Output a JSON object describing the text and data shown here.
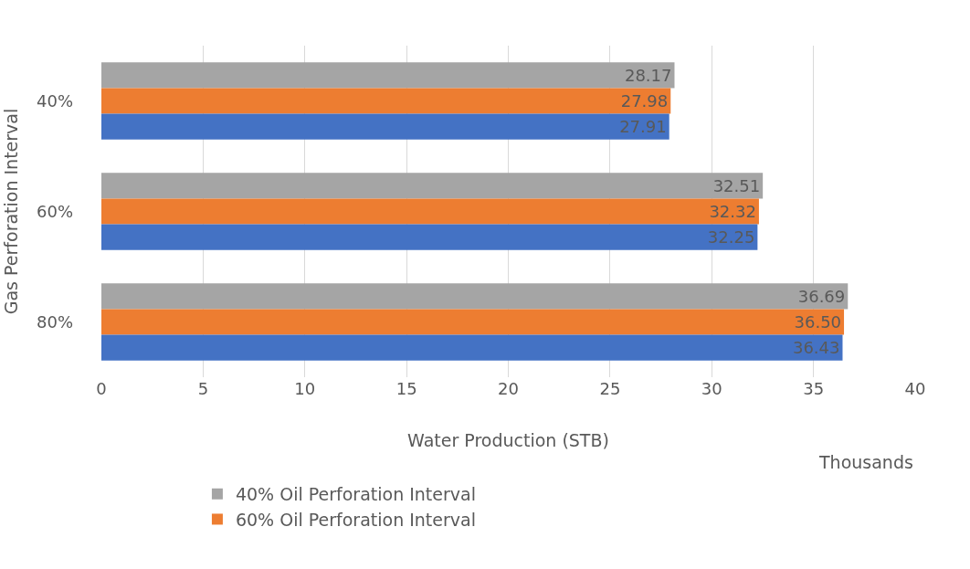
{
  "chart_data": {
    "type": "bar",
    "orientation": "horizontal",
    "ylabel": "Gas Perforation Interval",
    "xlabel": "Water Production (STB)",
    "annotations": [
      "Thousands"
    ],
    "categories": [
      "40%",
      "60%",
      "80%"
    ],
    "series": [
      {
        "name": "40% Oil Perforation Interval",
        "color": "#a5a5a5",
        "values": [
          28.17,
          32.51,
          36.69
        ],
        "value_labels": [
          "28.17",
          "32.51",
          "36.69"
        ]
      },
      {
        "name": "60% Oil Perforation Interval",
        "color": "#ed7d31",
        "values": [
          27.98,
          32.32,
          36.5
        ],
        "value_labels": [
          "27.98",
          "32.32",
          "36.50"
        ]
      },
      {
        "color": "#4472c4",
        "values": [
          27.91,
          32.25,
          36.43
        ],
        "value_labels": [
          "27.91",
          "32.25",
          "36.43"
        ]
      }
    ],
    "xlim": [
      0,
      40
    ],
    "xticks": [
      0,
      5,
      10,
      15,
      20,
      25,
      30,
      35,
      40
    ],
    "grid": "x",
    "legend": "bottom"
  }
}
